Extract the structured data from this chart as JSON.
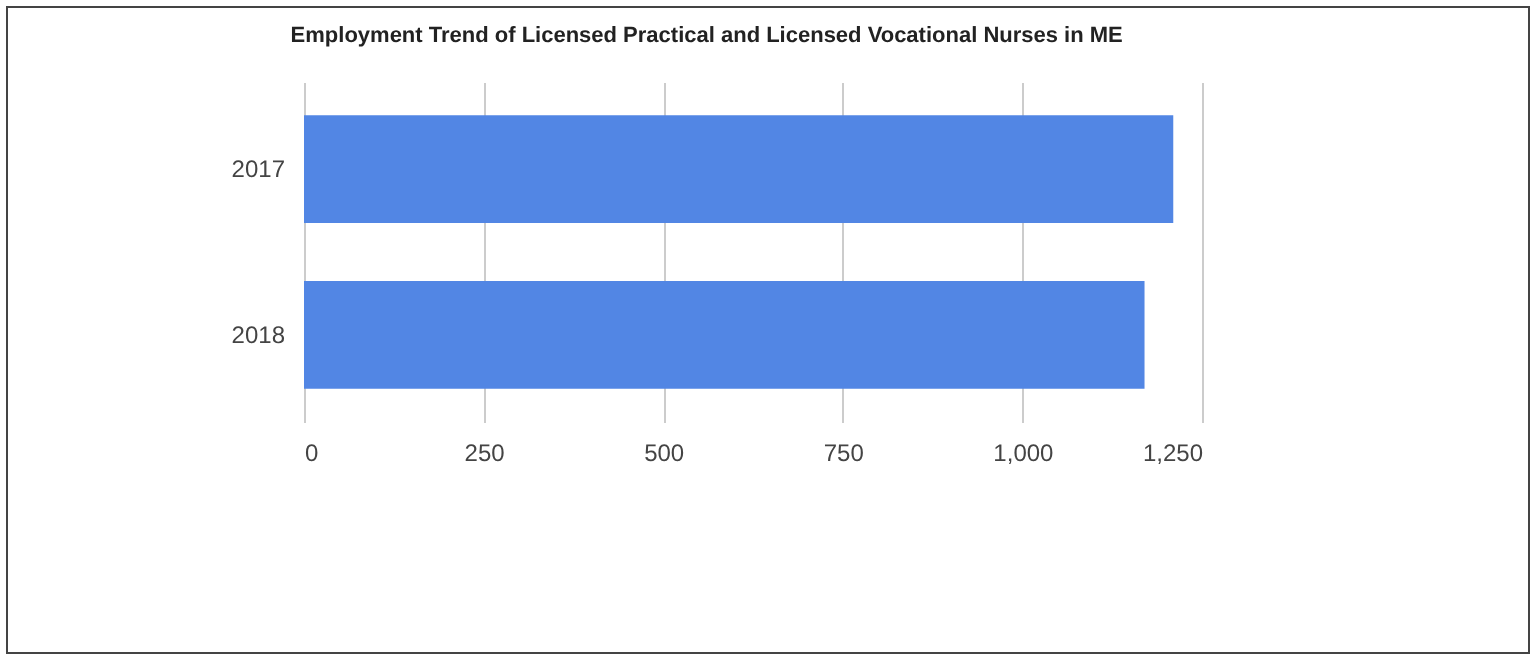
{
  "chart_data": {
    "type": "bar",
    "orientation": "horizontal",
    "title": "Employment Trend of Licensed Practical and Licensed Vocational Nurses in ME",
    "categories": [
      "2017",
      "2018"
    ],
    "series": [
      {
        "color": "#5286e4",
        "values": [
          1210,
          1170
        ]
      }
    ],
    "xlim": [
      0,
      1250
    ],
    "xticks": [
      0,
      250,
      500,
      750,
      {
        "value": 1000,
        "label": "1,000"
      },
      {
        "value": 1250,
        "label": "1,250"
      }
    ],
    "grid": "x"
  }
}
